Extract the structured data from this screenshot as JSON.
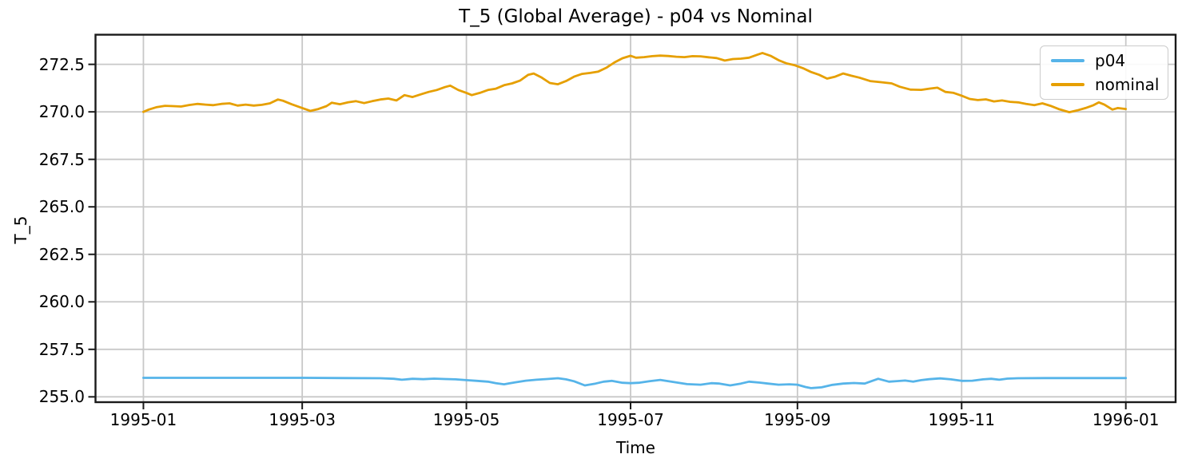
{
  "chart_data": {
    "type": "line",
    "title": "T_5 (Global Average) - p04 vs Nominal",
    "xlabel": "Time",
    "ylabel": "T_5",
    "grid": true,
    "background": "#ffffff",
    "grid_color": "#c8c8c8",
    "x_unit": "days since 1995-01-01",
    "x_ticks": [
      {
        "day": 0,
        "label": "1995-01"
      },
      {
        "day": 59,
        "label": "1995-03"
      },
      {
        "day": 120,
        "label": "1995-05"
      },
      {
        "day": 181,
        "label": "1995-07"
      },
      {
        "day": 243,
        "label": "1995-09"
      },
      {
        "day": 304,
        "label": "1995-11"
      },
      {
        "day": 365,
        "label": "1996-01"
      }
    ],
    "y_ticks": [
      {
        "value": 255.0,
        "label": "255.0"
      },
      {
        "value": 257.5,
        "label": "257.5"
      },
      {
        "value": 260.0,
        "label": "260.0"
      },
      {
        "value": 262.5,
        "label": "262.5"
      },
      {
        "value": 265.0,
        "label": "265.0"
      },
      {
        "value": 267.5,
        "label": "267.5"
      },
      {
        "value": 270.0,
        "label": "270.0"
      },
      {
        "value": 272.5,
        "label": "272.5"
      }
    ],
    "xlim_days": [
      -17.8,
      383.5
    ],
    "ylim": [
      254.72,
      274.06
    ],
    "legend": {
      "position": "upper right",
      "entries": [
        "p04",
        "nominal"
      ]
    },
    "series": [
      {
        "name": "p04",
        "color": "#56B4E9",
        "points": [
          [
            0,
            256.0
          ],
          [
            15,
            256.0
          ],
          [
            30,
            256.0
          ],
          [
            45,
            256.0
          ],
          [
            60,
            256.0
          ],
          [
            75,
            255.99
          ],
          [
            88,
            255.98
          ],
          [
            93,
            255.95
          ],
          [
            96,
            255.9
          ],
          [
            100,
            255.95
          ],
          [
            104,
            255.93
          ],
          [
            108,
            255.96
          ],
          [
            112,
            255.94
          ],
          [
            116,
            255.92
          ],
          [
            120,
            255.88
          ],
          [
            124,
            255.84
          ],
          [
            128,
            255.8
          ],
          [
            131,
            255.72
          ],
          [
            134,
            255.66
          ],
          [
            138,
            255.76
          ],
          [
            142,
            255.85
          ],
          [
            146,
            255.9
          ],
          [
            150,
            255.94
          ],
          [
            154,
            255.98
          ],
          [
            157,
            255.92
          ],
          [
            160,
            255.82
          ],
          [
            164,
            255.6
          ],
          [
            168,
            255.7
          ],
          [
            171,
            255.8
          ],
          [
            174,
            255.84
          ],
          [
            178,
            255.74
          ],
          [
            181,
            255.72
          ],
          [
            184,
            255.74
          ],
          [
            188,
            255.82
          ],
          [
            192,
            255.89
          ],
          [
            197,
            255.78
          ],
          [
            202,
            255.67
          ],
          [
            207,
            255.64
          ],
          [
            211,
            255.72
          ],
          [
            214,
            255.7
          ],
          [
            218,
            255.6
          ],
          [
            222,
            255.7
          ],
          [
            225,
            255.8
          ],
          [
            229,
            255.75
          ],
          [
            232,
            255.7
          ],
          [
            236,
            255.64
          ],
          [
            240,
            255.66
          ],
          [
            243,
            255.64
          ],
          [
            246,
            255.52
          ],
          [
            248,
            255.46
          ],
          [
            252,
            255.5
          ],
          [
            256,
            255.63
          ],
          [
            260,
            255.7
          ],
          [
            264,
            255.73
          ],
          [
            268,
            255.7
          ],
          [
            271,
            255.85
          ],
          [
            273,
            255.95
          ],
          [
            277,
            255.8
          ],
          [
            280,
            255.83
          ],
          [
            283,
            255.86
          ],
          [
            286,
            255.8
          ],
          [
            289,
            255.88
          ],
          [
            292,
            255.93
          ],
          [
            296,
            255.97
          ],
          [
            300,
            255.92
          ],
          [
            304,
            255.84
          ],
          [
            308,
            255.85
          ],
          [
            312,
            255.92
          ],
          [
            315,
            255.95
          ],
          [
            318,
            255.9
          ],
          [
            321,
            255.96
          ],
          [
            325,
            255.98
          ],
          [
            335,
            255.99
          ],
          [
            350,
            255.99
          ],
          [
            365,
            255.99
          ]
        ]
      },
      {
        "name": "nominal",
        "color": "#E69F00",
        "points": [
          [
            0,
            270.0
          ],
          [
            2,
            270.12
          ],
          [
            5,
            270.25
          ],
          [
            8,
            270.32
          ],
          [
            11,
            270.3
          ],
          [
            14,
            270.28
          ],
          [
            17,
            270.36
          ],
          [
            20,
            270.42
          ],
          [
            23,
            270.38
          ],
          [
            26,
            270.35
          ],
          [
            29,
            270.42
          ],
          [
            32,
            270.45
          ],
          [
            35,
            270.33
          ],
          [
            38,
            270.38
          ],
          [
            41,
            270.33
          ],
          [
            44,
            270.37
          ],
          [
            47,
            270.45
          ],
          [
            50,
            270.65
          ],
          [
            52,
            270.58
          ],
          [
            55,
            270.4
          ],
          [
            58,
            270.25
          ],
          [
            60,
            270.15
          ],
          [
            62,
            270.05
          ],
          [
            65,
            270.15
          ],
          [
            68,
            270.3
          ],
          [
            70,
            270.48
          ],
          [
            73,
            270.4
          ],
          [
            76,
            270.5
          ],
          [
            79,
            270.56
          ],
          [
            82,
            270.46
          ],
          [
            85,
            270.56
          ],
          [
            88,
            270.65
          ],
          [
            91,
            270.7
          ],
          [
            94,
            270.6
          ],
          [
            97,
            270.88
          ],
          [
            100,
            270.78
          ],
          [
            103,
            270.92
          ],
          [
            106,
            271.05
          ],
          [
            109,
            271.15
          ],
          [
            112,
            271.3
          ],
          [
            114,
            271.38
          ],
          [
            117,
            271.15
          ],
          [
            120,
            271.0
          ],
          [
            122,
            270.88
          ],
          [
            125,
            271.0
          ],
          [
            128,
            271.15
          ],
          [
            131,
            271.22
          ],
          [
            134,
            271.4
          ],
          [
            137,
            271.5
          ],
          [
            140,
            271.65
          ],
          [
            143,
            271.95
          ],
          [
            145,
            272.02
          ],
          [
            148,
            271.8
          ],
          [
            151,
            271.52
          ],
          [
            154,
            271.45
          ],
          [
            157,
            271.62
          ],
          [
            160,
            271.85
          ],
          [
            163,
            272.0
          ],
          [
            166,
            272.05
          ],
          [
            169,
            272.12
          ],
          [
            172,
            272.32
          ],
          [
            175,
            272.6
          ],
          [
            178,
            272.82
          ],
          [
            181,
            272.95
          ],
          [
            183,
            272.85
          ],
          [
            186,
            272.88
          ],
          [
            189,
            272.93
          ],
          [
            192,
            272.96
          ],
          [
            195,
            272.94
          ],
          [
            198,
            272.9
          ],
          [
            201,
            272.88
          ],
          [
            204,
            272.93
          ],
          [
            207,
            272.92
          ],
          [
            210,
            272.87
          ],
          [
            213,
            272.83
          ],
          [
            216,
            272.7
          ],
          [
            219,
            272.78
          ],
          [
            222,
            272.8
          ],
          [
            225,
            272.85
          ],
          [
            228,
            273.0
          ],
          [
            230,
            273.1
          ],
          [
            233,
            272.95
          ],
          [
            236,
            272.72
          ],
          [
            239,
            272.55
          ],
          [
            242,
            272.45
          ],
          [
            245,
            272.3
          ],
          [
            248,
            272.1
          ],
          [
            251,
            271.95
          ],
          [
            254,
            271.75
          ],
          [
            257,
            271.85
          ],
          [
            260,
            272.02
          ],
          [
            263,
            271.9
          ],
          [
            266,
            271.8
          ],
          [
            270,
            271.62
          ],
          [
            274,
            271.56
          ],
          [
            278,
            271.5
          ],
          [
            281,
            271.32
          ],
          [
            285,
            271.17
          ],
          [
            289,
            271.16
          ],
          [
            292,
            271.22
          ],
          [
            295,
            271.27
          ],
          [
            298,
            271.05
          ],
          [
            301,
            271.0
          ],
          [
            304,
            270.85
          ],
          [
            307,
            270.68
          ],
          [
            310,
            270.62
          ],
          [
            313,
            270.66
          ],
          [
            316,
            270.55
          ],
          [
            319,
            270.6
          ],
          [
            322,
            270.53
          ],
          [
            325,
            270.5
          ],
          [
            328,
            270.42
          ],
          [
            331,
            270.35
          ],
          [
            334,
            270.45
          ],
          [
            337,
            270.32
          ],
          [
            340,
            270.15
          ],
          [
            344,
            269.98
          ],
          [
            347,
            270.08
          ],
          [
            350,
            270.2
          ],
          [
            353,
            270.35
          ],
          [
            355,
            270.5
          ],
          [
            357,
            270.38
          ],
          [
            360,
            270.12
          ],
          [
            362,
            270.2
          ],
          [
            365,
            270.15
          ]
        ]
      }
    ]
  }
}
